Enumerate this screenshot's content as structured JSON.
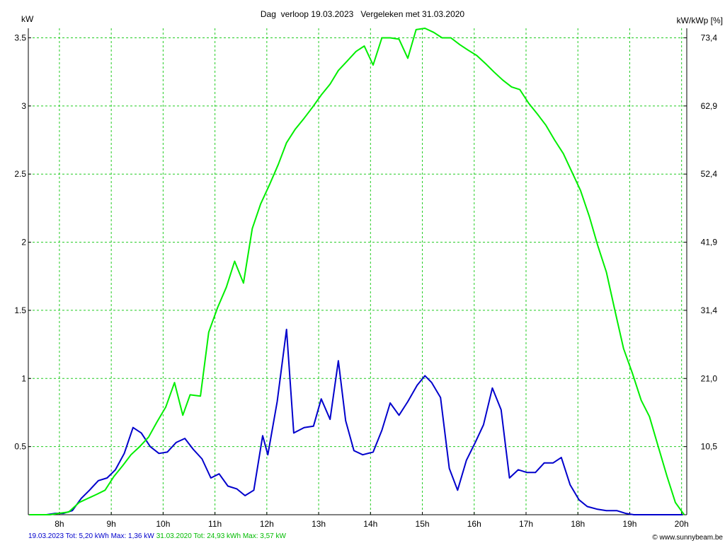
{
  "chart_data": {
    "type": "line",
    "title": "Dag  verloop 19.03.2023   Vergeleken met 31.03.2020",
    "ylabel_left": "kW",
    "ylabel_right": "kW/kWp [%]",
    "xlim": [
      7.4,
      20.1
    ],
    "ylim": [
      0,
      3.57
    ],
    "y_ticks": [
      0.5,
      1,
      1.5,
      2,
      2.5,
      3,
      3.5
    ],
    "y_tick_labels": [
      "0.5",
      "1",
      "1.5",
      "2",
      "2.5",
      "3",
      "3.5"
    ],
    "y_right_tick_labels": [
      "10,5",
      "21,0",
      "31,4",
      "41,9",
      "52,4",
      "62,9",
      "73,4"
    ],
    "x_ticks": [
      8,
      9,
      10,
      11,
      12,
      13,
      14,
      15,
      16,
      17,
      18,
      19,
      20
    ],
    "x_tick_labels": [
      "8h",
      "9h",
      "10h",
      "11h",
      "12h",
      "13h",
      "14h",
      "15h",
      "16h",
      "17h",
      "18h",
      "19h",
      "20h"
    ],
    "grid": true,
    "colors": {
      "grid": "#22cc22",
      "series_2023": "#0000cc",
      "series_2020": "#00ee00",
      "axes": "#000000"
    },
    "series": [
      {
        "key": "s2023",
        "color": "#0000cc",
        "x": [
          7.42,
          7.75,
          7.92,
          8.08,
          8.25,
          8.42,
          8.58,
          8.75,
          8.92,
          9.08,
          9.25,
          9.42,
          9.58,
          9.75,
          9.92,
          10.08,
          10.25,
          10.42,
          10.58,
          10.75,
          10.92,
          11.08,
          11.25,
          11.42,
          11.58,
          11.75,
          11.92,
          12.02,
          12.2,
          12.38,
          12.52,
          12.72,
          12.9,
          13.05,
          13.22,
          13.38,
          13.52,
          13.68,
          13.85,
          14.05,
          14.22,
          14.38,
          14.55,
          14.72,
          14.9,
          15.05,
          15.18,
          15.35,
          15.52,
          15.68,
          15.85,
          16.02,
          16.18,
          16.35,
          16.52,
          16.68,
          16.85,
          17.02,
          17.18,
          17.35,
          17.52,
          17.68,
          17.85,
          18.02,
          18.18,
          18.38,
          18.55,
          18.75,
          18.92,
          19.08,
          19.25,
          19.45,
          19.62,
          19.85,
          20.02
        ],
        "y": [
          0,
          0,
          0.01,
          0.01,
          0.03,
          0.12,
          0.18,
          0.25,
          0.27,
          0.33,
          0.45,
          0.64,
          0.6,
          0.5,
          0.45,
          0.46,
          0.53,
          0.56,
          0.48,
          0.41,
          0.27,
          0.3,
          0.21,
          0.19,
          0.14,
          0.18,
          0.58,
          0.44,
          0.83,
          1.36,
          0.6,
          0.64,
          0.65,
          0.85,
          0.7,
          1.13,
          0.69,
          0.47,
          0.44,
          0.46,
          0.62,
          0.82,
          0.73,
          0.83,
          0.95,
          1.02,
          0.97,
          0.86,
          0.34,
          0.18,
          0.4,
          0.53,
          0.66,
          0.93,
          0.77,
          0.27,
          0.33,
          0.31,
          0.31,
          0.38,
          0.38,
          0.42,
          0.22,
          0.11,
          0.06,
          0.04,
          0.03,
          0.03,
          0.01,
          0,
          0,
          0,
          0,
          0,
          0
        ]
      },
      {
        "key": "s2020",
        "color": "#00ee00",
        "x": [
          7.42,
          7.62,
          7.82,
          7.98,
          8.18,
          8.38,
          8.55,
          8.72,
          8.88,
          9.05,
          9.22,
          9.38,
          9.55,
          9.72,
          9.88,
          10.05,
          10.22,
          10.38,
          10.52,
          10.72,
          10.88,
          11.05,
          11.22,
          11.38,
          11.55,
          11.72,
          11.88,
          12.05,
          12.22,
          12.38,
          12.55,
          12.72,
          12.88,
          13.05,
          13.22,
          13.38,
          13.55,
          13.72,
          13.88,
          14.05,
          14.22,
          14.38,
          14.55,
          14.72,
          14.88,
          15.05,
          15.22,
          15.38,
          15.55,
          15.72,
          15.88,
          16.05,
          16.22,
          16.38,
          16.55,
          16.72,
          16.88,
          17.05,
          17.22,
          17.38,
          17.55,
          17.72,
          17.88,
          18.05,
          18.22,
          18.38,
          18.55,
          18.72,
          18.88,
          19.05,
          19.22,
          19.38,
          19.55,
          19.72,
          19.88,
          20.05
        ],
        "y": [
          0,
          0,
          0,
          0.01,
          0.02,
          0.09,
          0.12,
          0.15,
          0.18,
          0.28,
          0.36,
          0.44,
          0.5,
          0.57,
          0.68,
          0.79,
          0.97,
          0.73,
          0.88,
          0.87,
          1.34,
          1.52,
          1.67,
          1.86,
          1.7,
          2.1,
          2.28,
          2.42,
          2.57,
          2.73,
          2.83,
          2.91,
          2.99,
          3.08,
          3.16,
          3.26,
          3.33,
          3.4,
          3.44,
          3.3,
          3.5,
          3.5,
          3.49,
          3.35,
          3.56,
          3.57,
          3.54,
          3.5,
          3.5,
          3.45,
          3.41,
          3.37,
          3.31,
          3.25,
          3.19,
          3.14,
          3.12,
          3.02,
          2.94,
          2.86,
          2.75,
          2.65,
          2.52,
          2.38,
          2.19,
          1.98,
          1.78,
          1.49,
          1.22,
          1.04,
          0.84,
          0.72,
          0.5,
          0.28,
          0.09,
          0
        ]
      }
    ]
  },
  "footer": {
    "blue_text": "19.03.2023 Tot: 5,20 kWh Max: 1,36 kW",
    "green_text": "31.03.2020 Tot: 24,93 kWh Max: 3,57 kW",
    "copyright": "© www.sunnybeam.be"
  }
}
